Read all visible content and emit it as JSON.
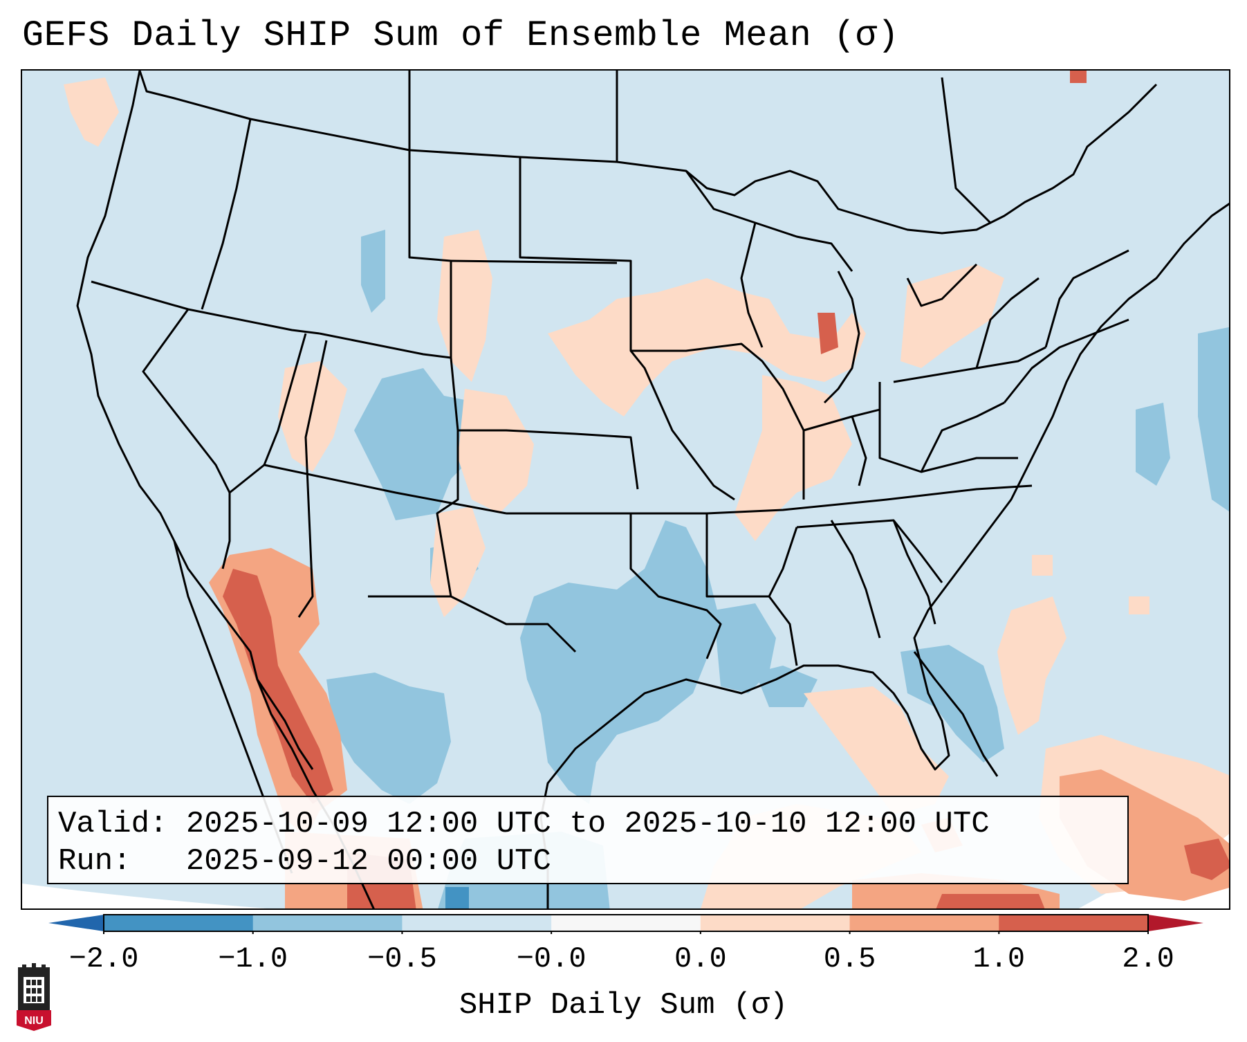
{
  "title": "GEFS Daily SHIP Sum of Ensemble Mean (σ)",
  "map": {
    "region": "Contiguous United States",
    "variable": "SHIP Daily Sum (σ)",
    "colors": {
      "ocean_background": "#d1e5f0",
      "light_blue": "#d1e5f0",
      "mid_blue": "#92c5de",
      "dark_blue": "#4393c3",
      "light_red": "#fddbc7",
      "mid_red": "#f4a582",
      "dark_red": "#d6604d",
      "darkest_red": "#b2182b",
      "borders": "#000000",
      "outside_domain": "#ffffff"
    }
  },
  "valid_box": {
    "valid_label": "Valid:",
    "valid_value": "2025-10-09 12:00 UTC to 2025-10-10 12:00 UTC",
    "run_label": "Run:",
    "run_value": "2025-09-12 00:00 UTC"
  },
  "colorbar": {
    "label": "SHIP Daily Sum (σ)",
    "ticks": [
      "−2.0",
      "−1.0",
      "−0.5",
      "−0.0",
      "0.0",
      "0.5",
      "1.0",
      "2.0"
    ],
    "colors": [
      "#2166ac",
      "#4393c3",
      "#92c5de",
      "#d1e5f0",
      "#f7f7f7",
      "#fddbc7",
      "#f4a582",
      "#d6604d",
      "#b2182b"
    ]
  },
  "logo": {
    "text": "NIU",
    "icon": "niu-logo-icon"
  }
}
